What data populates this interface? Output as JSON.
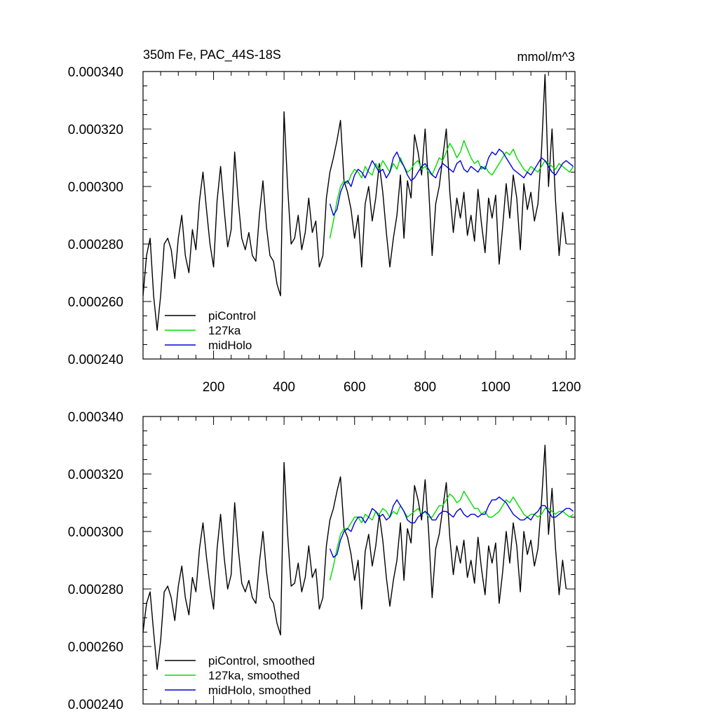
{
  "chart_data": [
    {
      "type": "line",
      "title": "350m Fe, PAC_44S-18S",
      "units": "mmol/m^3",
      "xlim": [
        0,
        1225
      ],
      "ylim": [
        0.00024,
        0.00034
      ],
      "xticks": [
        200,
        400,
        600,
        800,
        1000,
        1200
      ],
      "xtick_labels": [
        "200",
        "400",
        "600",
        "800",
        "1000",
        "1200"
      ],
      "yticks": [
        0.00024,
        0.00026,
        0.00028,
        0.0003,
        0.00032,
        0.00034
      ],
      "ytick_labels": [
        "0.000240",
        "0.000260",
        "0.000280",
        "0.000300",
        "0.000320",
        "0.000340"
      ],
      "legend_position": "bottom-left",
      "series": [
        {
          "name": "piControl",
          "color": "#000000",
          "x_start": 0,
          "x_step": 10,
          "values": [
            0.000262,
            0.000276,
            0.000282,
            0.000262,
            0.00025,
            0.000262,
            0.00028,
            0.000282,
            0.000278,
            0.000268,
            0.000282,
            0.00029,
            0.000276,
            0.00027,
            0.000285,
            0.000278,
            0.000295,
            0.000305,
            0.000292,
            0.00028,
            0.000272,
            0.000295,
            0.000307,
            0.000292,
            0.000279,
            0.000285,
            0.000312,
            0.000295,
            0.000282,
            0.000278,
            0.000284,
            0.000276,
            0.000274,
            0.00029,
            0.000302,
            0.000286,
            0.000276,
            0.000274,
            0.000266,
            0.000262,
            0.000326,
            0.0003,
            0.00028,
            0.000282,
            0.00029,
            0.000278,
            0.000284,
            0.000296,
            0.000284,
            0.000288,
            0.000272,
            0.000276,
            0.000296,
            0.000305,
            0.00031,
            0.000316,
            0.000323,
            0.000302,
            0.000298,
            0.000292,
            0.000282,
            0.00029,
            0.000272,
            0.000294,
            0.0003,
            0.000288,
            0.000296,
            0.000308,
            0.000298,
            0.000284,
            0.000272,
            0.000282,
            0.00029,
            0.000304,
            0.000282,
            0.000302,
            0.000296,
            0.000318,
            0.000312,
            0.000304,
            0.00032,
            0.0003,
            0.000276,
            0.000294,
            0.0003,
            0.00031,
            0.00032,
            0.000298,
            0.000284,
            0.000296,
            0.000289,
            0.000298,
            0.000283,
            0.00029,
            0.000281,
            0.000299,
            0.000287,
            0.000277,
            0.000296,
            0.000289,
            0.000297,
            0.000273,
            0.000286,
            0.000301,
            0.000289,
            0.000304,
            0.000296,
            0.000278,
            0.000301,
            0.000292,
            0.000298,
            0.000288,
            0.000294,
            0.000312,
            0.000339,
            0.0003,
            0.00032,
            0.000295,
            0.000276,
            0.000291,
            0.00028
          ]
        },
        {
          "name": "127ka",
          "color": "#00dd00",
          "x_start": 530,
          "x_step": 10,
          "values": [
            0.000282,
            0.000288,
            0.000295,
            0.0003,
            0.000302,
            0.000301,
            0.000304,
            0.000306,
            0.000305,
            0.000303,
            0.000307,
            0.000305,
            0.000304,
            0.000308,
            0.000306,
            0.000309,
            0.000307,
            0.000305,
            0.000308,
            0.000306,
            0.00031,
            0.000307,
            0.000305,
            0.000306,
            0.000308,
            0.000309,
            0.000306,
            0.000307,
            0.000305,
            0.000304,
            0.000307,
            0.00031,
            0.000309,
            0.000312,
            0.000315,
            0.000313,
            0.00031,
            0.000312,
            0.000316,
            0.000313,
            0.00031,
            0.000308,
            0.000309,
            0.000306,
            0.000307,
            0.000305,
            0.000304,
            0.000306,
            0.000308,
            0.00031,
            0.000312,
            0.000311,
            0.000313,
            0.00031,
            0.000308,
            0.000306,
            0.000305,
            0.000307,
            0.000306,
            0.000305,
            0.000307,
            0.000309,
            0.000308,
            0.000307,
            0.000306,
            0.000308,
            0.000307,
            0.000306,
            0.000305,
            0.000307
          ]
        },
        {
          "name": "midHolo",
          "color": "#0000dd",
          "x_start": 530,
          "x_step": 10,
          "values": [
            0.000294,
            0.00029,
            0.000292,
            0.000298,
            0.000301,
            0.000302,
            0.0003,
            0.000304,
            0.000306,
            0.000305,
            0.000303,
            0.000306,
            0.000309,
            0.000307,
            0.000305,
            0.000306,
            0.000303,
            0.000305,
            0.00031,
            0.000312,
            0.000309,
            0.000307,
            0.000304,
            0.000302,
            0.000303,
            0.000305,
            0.000307,
            0.000308,
            0.000306,
            0.000304,
            0.000303,
            0.000306,
            0.000308,
            0.000307,
            0.000306,
            0.000305,
            0.000308,
            0.000309,
            0.000306,
            0.000305,
            0.000307,
            0.000306,
            0.000305,
            0.000307,
            0.000306,
            0.00031,
            0.000312,
            0.000311,
            0.000313,
            0.000312,
            0.00031,
            0.000308,
            0.000306,
            0.000305,
            0.000304,
            0.000303,
            0.000305,
            0.000304,
            0.000306,
            0.000308,
            0.00031,
            0.000309,
            0.000307,
            0.000305,
            0.000304,
            0.000306,
            0.000308,
            0.000309,
            0.000308,
            0.000307
          ]
        }
      ],
      "legend": [
        "piControl",
        "127ka",
        "midHolo"
      ]
    },
    {
      "type": "line",
      "title": "",
      "units": "",
      "xlim": [
        0,
        1225
      ],
      "ylim": [
        0.00024,
        0.00034
      ],
      "xticks": [
        200,
        400,
        600,
        800,
        1000,
        1200
      ],
      "xtick_labels": [],
      "yticks": [
        0.00024,
        0.00026,
        0.00028,
        0.0003,
        0.00032,
        0.00034
      ],
      "ytick_labels": [
        "0.000240",
        "0.000260",
        "0.000280",
        "0.000300",
        "0.000320",
        "0.000340"
      ],
      "legend_position": "bottom-left",
      "series": [
        {
          "name": "piControl, smoothed",
          "color": "#000000",
          "x_start": 0,
          "x_step": 10,
          "values": [
            0.000265,
            0.000275,
            0.000279,
            0.000265,
            0.000252,
            0.000262,
            0.000279,
            0.000281,
            0.000277,
            0.000269,
            0.000281,
            0.000288,
            0.000277,
            0.000271,
            0.000284,
            0.000279,
            0.000294,
            0.000303,
            0.000291,
            0.000281,
            0.000273,
            0.000294,
            0.000306,
            0.000291,
            0.00028,
            0.000285,
            0.00031,
            0.000294,
            0.000282,
            0.000279,
            0.000283,
            0.000277,
            0.000275,
            0.000289,
            0.0003,
            0.000286,
            0.000277,
            0.000275,
            0.000268,
            0.000264,
            0.000324,
            0.000299,
            0.000281,
            0.000282,
            0.000289,
            0.000279,
            0.000284,
            0.000295,
            0.000284,
            0.000287,
            0.000273,
            0.000277,
            0.000295,
            0.000304,
            0.000308,
            0.000314,
            0.000319,
            0.000301,
            0.000298,
            0.000292,
            0.000283,
            0.00029,
            0.000273,
            0.000293,
            0.000299,
            0.000288,
            0.000295,
            0.000306,
            0.000297,
            0.000284,
            0.000274,
            0.000283,
            0.00029,
            0.000303,
            0.000283,
            0.000301,
            0.000296,
            0.000316,
            0.000311,
            0.000304,
            0.000318,
            0.0003,
            0.000277,
            0.000294,
            0.000299,
            0.000308,
            0.000317,
            0.000298,
            0.000285,
            0.000295,
            0.000289,
            0.000297,
            0.000284,
            0.00029,
            0.000282,
            0.000298,
            0.000287,
            0.000278,
            0.000295,
            0.000289,
            0.000296,
            0.000275,
            0.000286,
            0.0003,
            0.000289,
            0.000303,
            0.000295,
            0.000279,
            0.0003,
            0.000292,
            0.000297,
            0.000288,
            0.000294,
            0.00031,
            0.00033,
            0.000299,
            0.000315,
            0.000294,
            0.000278,
            0.00029,
            0.00028
          ]
        },
        {
          "name": "127ka, smoothed",
          "color": "#00dd00",
          "x_start": 530,
          "x_step": 10,
          "values": [
            0.000283,
            0.000288,
            0.000294,
            0.000299,
            0.000301,
            0.000301,
            0.000303,
            0.000305,
            0.000305,
            0.000303,
            0.000306,
            0.000305,
            0.000304,
            0.000307,
            0.000306,
            0.000308,
            0.000307,
            0.000305,
            0.000307,
            0.000306,
            0.000309,
            0.000307,
            0.000305,
            0.000306,
            0.000307,
            0.000308,
            0.000306,
            0.000307,
            0.000305,
            0.000305,
            0.000307,
            0.000309,
            0.000309,
            0.000311,
            0.000313,
            0.000312,
            0.00031,
            0.000311,
            0.000314,
            0.000312,
            0.00031,
            0.000308,
            0.000308,
            0.000306,
            0.000307,
            0.000305,
            0.000305,
            0.000306,
            0.000307,
            0.000309,
            0.000311,
            0.00031,
            0.000312,
            0.00031,
            0.000308,
            0.000306,
            0.000305,
            0.000306,
            0.000306,
            0.000305,
            0.000306,
            0.000308,
            0.000308,
            0.000307,
            0.000306,
            0.000307,
            0.000307,
            0.000306,
            0.000305,
            0.000306
          ]
        },
        {
          "name": "midHolo, smoothed",
          "color": "#0000dd",
          "x_start": 530,
          "x_step": 10,
          "values": [
            0.000294,
            0.000291,
            0.000292,
            0.000297,
            0.0003,
            0.000301,
            0.0003,
            0.000303,
            0.000305,
            0.000305,
            0.000303,
            0.000305,
            0.000308,
            0.000307,
            0.000305,
            0.000306,
            0.000304,
            0.000305,
            0.000309,
            0.000311,
            0.000309,
            0.000307,
            0.000304,
            0.000303,
            0.000303,
            0.000305,
            0.000306,
            0.000307,
            0.000306,
            0.000304,
            0.000304,
            0.000306,
            0.000307,
            0.000307,
            0.000306,
            0.000305,
            0.000307,
            0.000308,
            0.000306,
            0.000305,
            0.000306,
            0.000306,
            0.000305,
            0.000306,
            0.000306,
            0.000309,
            0.000311,
            0.000311,
            0.000312,
            0.000311,
            0.00031,
            0.000308,
            0.000306,
            0.000305,
            0.000304,
            0.000304,
            0.000305,
            0.000304,
            0.000306,
            0.000307,
            0.000309,
            0.000309,
            0.000307,
            0.000305,
            0.000305,
            0.000306,
            0.000307,
            0.000308,
            0.000308,
            0.000307
          ]
        }
      ],
      "legend": [
        "piControl, smoothed",
        "127ka, smoothed",
        "midHolo, smoothed"
      ]
    }
  ]
}
